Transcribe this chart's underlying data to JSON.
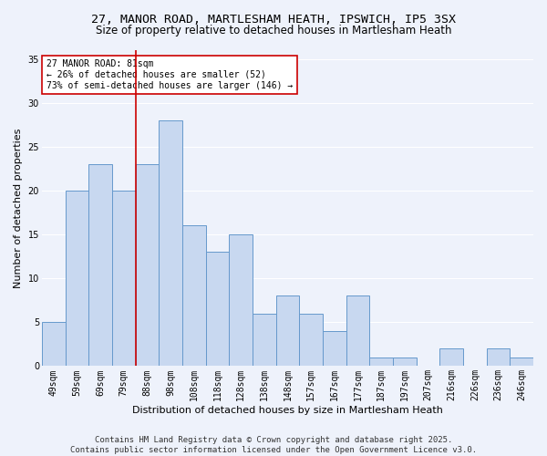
{
  "title_line1": "27, MANOR ROAD, MARTLESHAM HEATH, IPSWICH, IP5 3SX",
  "title_line2": "Size of property relative to detached houses in Martlesham Heath",
  "xlabel": "Distribution of detached houses by size in Martlesham Heath",
  "ylabel": "Number of detached properties",
  "categories": [
    "49sqm",
    "59sqm",
    "69sqm",
    "79sqm",
    "88sqm",
    "98sqm",
    "108sqm",
    "118sqm",
    "128sqm",
    "138sqm",
    "148sqm",
    "157sqm",
    "167sqm",
    "177sqm",
    "187sqm",
    "197sqm",
    "207sqm",
    "216sqm",
    "226sqm",
    "236sqm",
    "246sqm"
  ],
  "values": [
    5,
    20,
    23,
    20,
    23,
    28,
    16,
    13,
    15,
    6,
    8,
    6,
    4,
    8,
    1,
    1,
    0,
    2,
    0,
    2,
    1
  ],
  "bar_color": "#c8d8f0",
  "bar_edge_color": "#6699cc",
  "vline_color": "#cc0000",
  "annotation_text": "27 MANOR ROAD: 81sqm\n← 26% of detached houses are smaller (52)\n73% of semi-detached houses are larger (146) →",
  "annotation_box_color": "#ffffff",
  "annotation_box_edge": "#cc0000",
  "ylim": [
    0,
    36
  ],
  "yticks": [
    0,
    5,
    10,
    15,
    20,
    25,
    30,
    35
  ],
  "footer": "Contains HM Land Registry data © Crown copyright and database right 2025.\nContains public sector information licensed under the Open Government Licence v3.0.",
  "bg_color": "#eef2fb",
  "grid_color": "#ffffff",
  "title_fontsize": 9.5,
  "subtitle_fontsize": 8.5,
  "axis_label_fontsize": 8,
  "tick_fontsize": 7,
  "annotation_fontsize": 7,
  "footer_fontsize": 6.5
}
